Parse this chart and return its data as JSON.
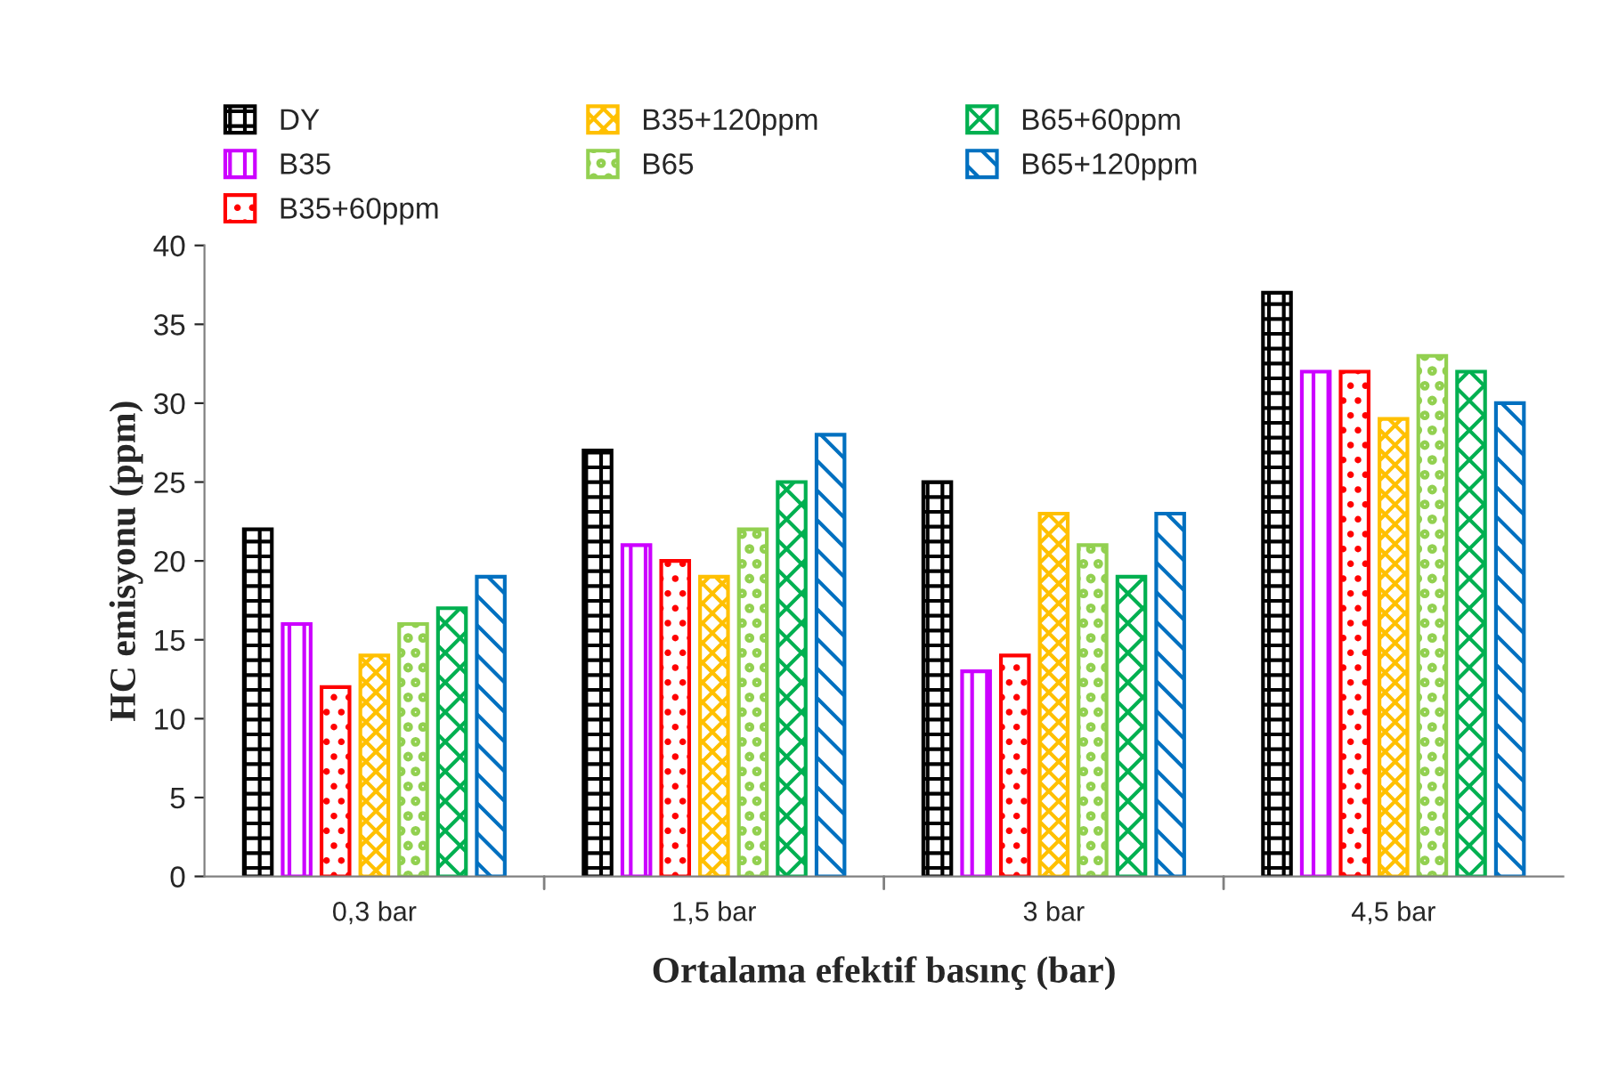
{
  "chart_data": {
    "type": "bar",
    "xlabel": "Ortalama efektif basınç (bar)",
    "ylabel": "HC emisyonu (ppm)",
    "categories": [
      "0,3 bar",
      "1,5 bar",
      "3 bar",
      "4,5 bar"
    ],
    "series": [
      {
        "name": "DY",
        "color": "#000000",
        "values": [
          22,
          27,
          25,
          37
        ]
      },
      {
        "name": "B35",
        "color": "#cc00ff",
        "values": [
          16,
          21,
          13,
          32
        ]
      },
      {
        "name": "B35+60ppm",
        "color": "#ff0000",
        "values": [
          12,
          20,
          14,
          32
        ]
      },
      {
        "name": "B35+120ppm",
        "color": "#ffc000",
        "values": [
          14,
          19,
          23,
          29
        ]
      },
      {
        "name": "B65",
        "color": "#92d050",
        "values": [
          16,
          22,
          21,
          33
        ]
      },
      {
        "name": "B65+60ppm",
        "color": "#00b050",
        "values": [
          17,
          25,
          19,
          32
        ]
      },
      {
        "name": "B65+120ppm",
        "color": "#0070c0",
        "values": [
          19,
          28,
          23,
          30
        ]
      }
    ],
    "ylim": [
      0,
      40
    ],
    "yticks": [
      0,
      5,
      10,
      15,
      20,
      25,
      30,
      35,
      40
    ],
    "grid": false,
    "legend": "top"
  }
}
